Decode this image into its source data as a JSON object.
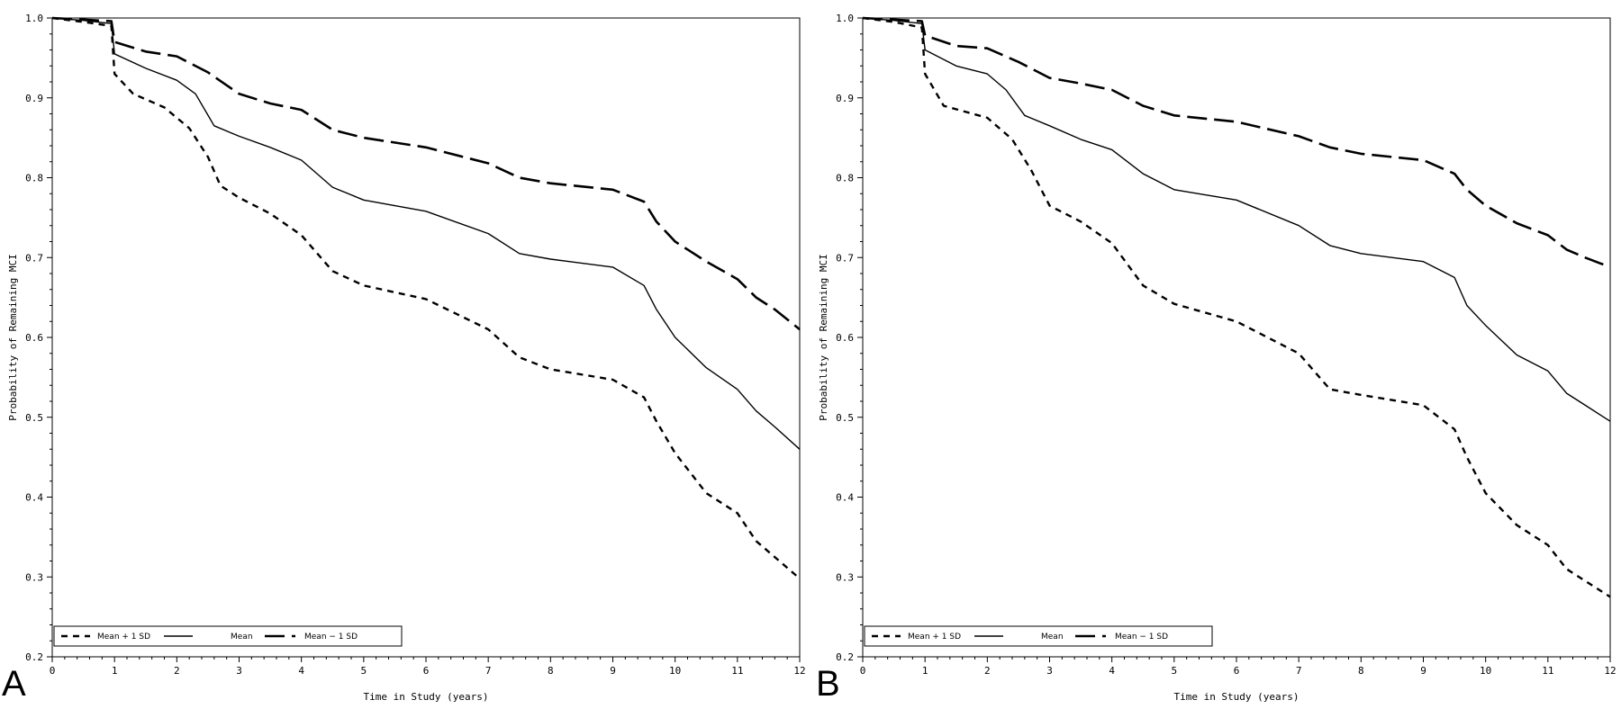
{
  "panels": [
    {
      "label": "A"
    },
    {
      "label": "B"
    }
  ],
  "chart_data": [
    {
      "type": "line",
      "panel": "A",
      "xlabel": "Time in Study (years)",
      "ylabel": "Probability of Remaining MCI",
      "xlim": [
        0,
        12
      ],
      "ylim": [
        0.2,
        1.0
      ],
      "xticks": [
        "0",
        "1",
        "2",
        "3",
        "4",
        "5",
        "6",
        "7",
        "8",
        "9",
        "10",
        "11",
        "12"
      ],
      "yticks": [
        "0.2",
        "0.3",
        "0.4",
        "0.5",
        "0.6",
        "0.7",
        "0.8",
        "0.9",
        "1.0"
      ],
      "legend_position": "bottom-left",
      "series": [
        {
          "name": "Mean + 1 SD",
          "style": "short-dash",
          "x": [
            0,
            0.5,
            0.95,
            1.0,
            1.3,
            1.8,
            2.2,
            2.5,
            2.7,
            3.0,
            3.5,
            4.0,
            4.5,
            5.0,
            6.0,
            7.0,
            7.5,
            8.0,
            9.0,
            9.5,
            9.7,
            10.0,
            10.5,
            11.0,
            11.3,
            11.6,
            12.0
          ],
          "y": [
            1.0,
            0.995,
            0.99,
            0.93,
            0.905,
            0.888,
            0.862,
            0.826,
            0.79,
            0.775,
            0.755,
            0.728,
            0.683,
            0.665,
            0.648,
            0.61,
            0.575,
            0.56,
            0.547,
            0.525,
            0.495,
            0.455,
            0.405,
            0.38,
            0.345,
            0.325,
            0.298
          ]
        },
        {
          "name": "Mean",
          "style": "solid",
          "x": [
            0,
            0.5,
            0.95,
            1.0,
            1.5,
            2.0,
            2.3,
            2.6,
            3.0,
            3.5,
            4.0,
            4.5,
            5.0,
            6.0,
            7.0,
            7.5,
            8.0,
            9.0,
            9.5,
            9.7,
            10.0,
            10.5,
            11.0,
            11.3,
            11.6,
            12.0
          ],
          "y": [
            1.0,
            0.997,
            0.993,
            0.955,
            0.937,
            0.922,
            0.905,
            0.865,
            0.852,
            0.838,
            0.822,
            0.788,
            0.772,
            0.758,
            0.73,
            0.705,
            0.698,
            0.688,
            0.665,
            0.635,
            0.6,
            0.562,
            0.535,
            0.508,
            0.488,
            0.46
          ]
        },
        {
          "name": "Mean − 1 SD",
          "style": "long-dash",
          "x": [
            0,
            0.5,
            0.95,
            1.0,
            1.5,
            2.0,
            2.5,
            3.0,
            3.5,
            4.0,
            4.5,
            5.0,
            6.0,
            7.0,
            7.5,
            8.0,
            9.0,
            9.5,
            9.7,
            10.0,
            10.5,
            11.0,
            11.3,
            11.6,
            12.0
          ],
          "y": [
            1.0,
            0.998,
            0.996,
            0.97,
            0.958,
            0.952,
            0.932,
            0.905,
            0.893,
            0.885,
            0.86,
            0.85,
            0.838,
            0.818,
            0.8,
            0.793,
            0.785,
            0.77,
            0.745,
            0.72,
            0.695,
            0.673,
            0.65,
            0.635,
            0.61
          ]
        }
      ]
    },
    {
      "type": "line",
      "panel": "B",
      "xlabel": "Time in Study (years)",
      "ylabel": "Probability of Remaining MCI",
      "xlim": [
        0,
        12
      ],
      "ylim": [
        0.2,
        1.0
      ],
      "xticks": [
        "0",
        "1",
        "2",
        "3",
        "4",
        "5",
        "6",
        "7",
        "8",
        "9",
        "10",
        "11",
        "12"
      ],
      "yticks": [
        "0.2",
        "0.3",
        "0.4",
        "0.5",
        "0.6",
        "0.7",
        "0.8",
        "0.9",
        "1.0"
      ],
      "legend_position": "bottom-left",
      "series": [
        {
          "name": "Mean + 1 SD",
          "style": "short-dash",
          "x": [
            0,
            0.5,
            0.95,
            1.0,
            1.3,
            2.0,
            2.4,
            2.7,
            3.0,
            3.5,
            4.0,
            4.5,
            5.0,
            6.0,
            7.0,
            7.5,
            8.0,
            9.0,
            9.5,
            9.7,
            10.0,
            10.5,
            11.0,
            11.3,
            11.6,
            12.0
          ],
          "y": [
            1.0,
            0.995,
            0.988,
            0.93,
            0.89,
            0.875,
            0.848,
            0.81,
            0.765,
            0.745,
            0.718,
            0.665,
            0.642,
            0.62,
            0.58,
            0.535,
            0.528,
            0.515,
            0.485,
            0.45,
            0.405,
            0.365,
            0.34,
            0.31,
            0.295,
            0.275
          ]
        },
        {
          "name": "Mean",
          "style": "solid",
          "x": [
            0,
            0.5,
            0.95,
            1.0,
            1.5,
            2.0,
            2.3,
            2.6,
            3.0,
            3.5,
            4.0,
            4.5,
            5.0,
            6.0,
            7.0,
            7.5,
            8.0,
            9.0,
            9.5,
            9.7,
            10.0,
            10.5,
            11.0,
            11.3,
            11.6,
            12.0
          ],
          "y": [
            1.0,
            0.997,
            0.993,
            0.96,
            0.94,
            0.93,
            0.91,
            0.878,
            0.865,
            0.848,
            0.835,
            0.805,
            0.785,
            0.772,
            0.74,
            0.715,
            0.705,
            0.695,
            0.675,
            0.64,
            0.615,
            0.578,
            0.558,
            0.53,
            0.515,
            0.495
          ]
        },
        {
          "name": "Mean − 1 SD",
          "style": "long-dash",
          "x": [
            0,
            0.5,
            0.95,
            1.0,
            1.5,
            2.0,
            2.5,
            3.0,
            3.5,
            4.0,
            4.5,
            5.0,
            6.0,
            7.0,
            7.5,
            8.0,
            9.0,
            9.5,
            9.7,
            10.0,
            10.5,
            11.0,
            11.3,
            11.6,
            12.0
          ],
          "y": [
            1.0,
            0.998,
            0.996,
            0.978,
            0.965,
            0.962,
            0.945,
            0.925,
            0.918,
            0.91,
            0.89,
            0.878,
            0.87,
            0.852,
            0.838,
            0.83,
            0.822,
            0.805,
            0.785,
            0.765,
            0.743,
            0.728,
            0.71,
            0.7,
            0.688
          ]
        }
      ]
    }
  ]
}
